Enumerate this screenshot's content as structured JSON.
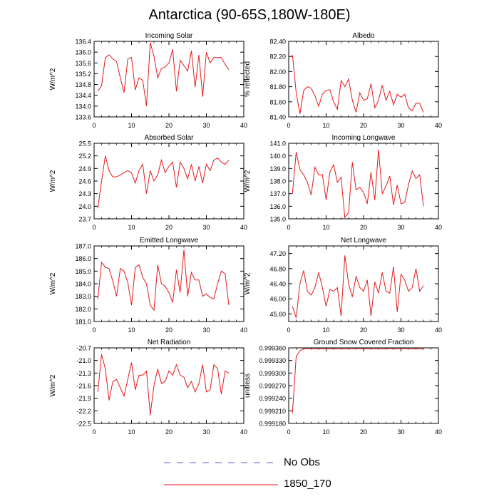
{
  "title": "Antarctica (90-65S,180W-180E)",
  "legend": {
    "items": [
      {
        "label": "No Obs",
        "color": "#5b5bd6",
        "dashed": true
      },
      {
        "label": "1850_170",
        "color": "#e41a1c",
        "dashed": false
      }
    ]
  },
  "chart_data": [
    {
      "type": "line",
      "title": "Incoming Solar",
      "ylabel": "W/m^2",
      "xlim": [
        0,
        40
      ],
      "xticks": [
        0,
        10,
        20,
        30,
        40
      ],
      "ylim": [
        133.6,
        136.4
      ],
      "yticks": [
        "133.6",
        "134.0",
        "134.4",
        "134.8",
        "135.2",
        "135.6",
        "136.0",
        "136.4"
      ],
      "series": [
        {
          "name": "1850_170",
          "x": [
            1,
            2,
            3,
            4,
            5,
            6,
            7,
            8,
            9,
            10,
            11,
            12,
            13,
            14,
            15,
            16,
            17,
            18,
            19,
            20,
            21,
            22,
            23,
            24,
            25,
            26,
            27,
            28,
            29,
            30,
            31,
            32,
            33,
            34,
            35,
            36
          ],
          "values": [
            134.55,
            134.75,
            135.8,
            135.9,
            135.75,
            135.65,
            135.05,
            134.5,
            135.75,
            135.8,
            134.6,
            135.05,
            134.95,
            134.0,
            136.35,
            135.85,
            135.05,
            135.4,
            135.45,
            135.6,
            136.1,
            134.55,
            135.7,
            135.5,
            135.3,
            136.05,
            134.7,
            135.9,
            134.35,
            136.0,
            135.6,
            135.8,
            135.8,
            135.8,
            135.55,
            135.35
          ]
        }
      ]
    },
    {
      "type": "line",
      "title": "Albedo",
      "ylabel": "% reflected",
      "xlim": [
        0,
        40
      ],
      "xticks": [
        0,
        10,
        20,
        30,
        40
      ],
      "ylim": [
        81.4,
        82.4
      ],
      "yticks": [
        "81.40",
        "81.60",
        "81.80",
        "82.00",
        "82.20",
        "82.40"
      ],
      "series": [
        {
          "name": "1850_170",
          "x": [
            1,
            2,
            3,
            4,
            5,
            6,
            7,
            8,
            9,
            10,
            11,
            12,
            13,
            14,
            15,
            16,
            17,
            18,
            19,
            20,
            21,
            22,
            23,
            24,
            25,
            26,
            27,
            28,
            29,
            30,
            31,
            32,
            33,
            34,
            35,
            36
          ],
          "values": [
            82.22,
            81.72,
            81.44,
            81.75,
            81.8,
            81.78,
            81.68,
            81.54,
            81.7,
            81.75,
            81.76,
            81.6,
            81.5,
            81.88,
            81.8,
            81.9,
            81.62,
            81.46,
            81.72,
            81.62,
            81.64,
            81.84,
            81.52,
            81.62,
            81.82,
            81.62,
            81.74,
            81.56,
            81.7,
            81.66,
            81.7,
            81.52,
            81.48,
            81.58,
            81.58,
            81.46
          ]
        }
      ]
    },
    {
      "type": "line",
      "title": "Absorbed Solar",
      "ylabel": "W/m^2",
      "xlim": [
        0,
        40
      ],
      "xticks": [
        0,
        10,
        20,
        30,
        40
      ],
      "ylim": [
        23.7,
        25.5
      ],
      "yticks": [
        "23.7",
        "24.0",
        "24.3",
        "24.6",
        "24.9",
        "25.2",
        "25.5"
      ],
      "series": [
        {
          "name": "1850_170",
          "x": [
            1,
            2,
            3,
            4,
            5,
            6,
            7,
            8,
            9,
            10,
            11,
            12,
            13,
            14,
            15,
            16,
            17,
            18,
            19,
            20,
            21,
            22,
            23,
            24,
            25,
            26,
            27,
            28,
            29,
            30,
            31,
            32,
            33,
            34,
            35,
            36
          ],
          "values": [
            23.95,
            24.6,
            25.2,
            24.85,
            24.7,
            24.7,
            24.75,
            24.8,
            24.85,
            24.8,
            24.55,
            24.85,
            25.0,
            24.3,
            24.85,
            24.6,
            24.75,
            25.1,
            24.8,
            24.95,
            25.05,
            24.45,
            25.05,
            24.9,
            24.65,
            25.0,
            24.6,
            24.95,
            24.55,
            25.0,
            24.85,
            25.1,
            25.15,
            25.05,
            25.0,
            25.1
          ]
        }
      ]
    },
    {
      "type": "line",
      "title": "Incoming Longwave",
      "ylabel": "W/m^2",
      "xlim": [
        0,
        40
      ],
      "xticks": [
        0,
        10,
        20,
        30,
        40
      ],
      "ylim": [
        135.0,
        141.0
      ],
      "yticks": [
        "135.0",
        "136.0",
        "137.0",
        "138.0",
        "139.0",
        "140.0",
        "141.0"
      ],
      "series": [
        {
          "name": "1850_170",
          "x": [
            1,
            2,
            3,
            4,
            5,
            6,
            7,
            8,
            9,
            10,
            11,
            12,
            13,
            14,
            15,
            16,
            17,
            18,
            19,
            20,
            21,
            22,
            23,
            24,
            25,
            26,
            27,
            28,
            29,
            30,
            31,
            32,
            33,
            34,
            35,
            36
          ],
          "values": [
            137.0,
            140.3,
            138.9,
            138.5,
            137.9,
            136.9,
            139.1,
            138.5,
            138.5,
            136.5,
            138.7,
            139.3,
            137.9,
            138.3,
            135.1,
            135.5,
            139.5,
            137.3,
            137.5,
            137.1,
            136.2,
            138.7,
            136.5,
            140.5,
            137.0,
            137.6,
            138.4,
            136.1,
            137.7,
            136.2,
            136.3,
            137.7,
            138.8,
            138.2,
            138.5,
            136.0
          ]
        }
      ]
    },
    {
      "type": "line",
      "title": "Emitted Longwave",
      "ylabel": "W/m^2",
      "xlim": [
        0,
        40
      ],
      "xticks": [
        0,
        10,
        20,
        30,
        40
      ],
      "ylim": [
        181.0,
        187.0
      ],
      "yticks": [
        "181.0",
        "182.0",
        "183.0",
        "184.0",
        "185.0",
        "186.0",
        "187.0"
      ],
      "series": [
        {
          "name": "1850_170",
          "x": [
            1,
            2,
            3,
            4,
            5,
            6,
            7,
            8,
            9,
            10,
            11,
            12,
            13,
            14,
            15,
            16,
            17,
            18,
            19,
            20,
            21,
            22,
            23,
            24,
            25,
            26,
            27,
            28,
            29,
            30,
            31,
            32,
            33,
            34,
            35,
            36
          ],
          "values": [
            182.8,
            185.7,
            185.3,
            185.2,
            184.2,
            183.0,
            185.2,
            185.0,
            184.1,
            182.3,
            185.3,
            185.5,
            184.5,
            184.0,
            182.3,
            181.9,
            185.5,
            184.0,
            183.8,
            183.3,
            182.5,
            185.1,
            183.3,
            186.7,
            183.0,
            184.9,
            184.3,
            184.3,
            183.0,
            183.2,
            182.9,
            182.8,
            184.0,
            185.0,
            184.8,
            182.3
          ]
        }
      ]
    },
    {
      "type": "line",
      "title": "Net Longwave",
      "ylabel": "W/m^2",
      "xlim": [
        0,
        40
      ],
      "xticks": [
        0,
        10,
        20,
        30,
        40
      ],
      "ylim": [
        45.4,
        47.4
      ],
      "yticks": [
        "45.60",
        "46.00",
        "46.40",
        "46.80",
        "47.20"
      ],
      "series": [
        {
          "name": "1850_170",
          "x": [
            1,
            2,
            3,
            4,
            5,
            6,
            7,
            8,
            9,
            10,
            11,
            12,
            13,
            14,
            15,
            16,
            17,
            18,
            19,
            20,
            21,
            22,
            23,
            24,
            25,
            26,
            27,
            28,
            29,
            30,
            31,
            32,
            33,
            34,
            35,
            36
          ],
          "values": [
            45.8,
            45.5,
            46.4,
            46.75,
            46.2,
            46.1,
            46.3,
            46.7,
            46.3,
            45.8,
            46.25,
            46.2,
            46.3,
            45.55,
            47.15,
            46.4,
            46.05,
            46.6,
            46.3,
            46.2,
            46.5,
            45.55,
            46.45,
            46.15,
            46.7,
            46.2,
            46.15,
            46.85,
            45.65,
            46.65,
            46.5,
            46.2,
            46.3,
            46.8,
            46.2,
            46.35
          ]
        }
      ]
    },
    {
      "type": "line",
      "title": "Net Radiation",
      "ylabel": "W/m^2",
      "xlim": [
        0,
        40
      ],
      "xticks": [
        0,
        10,
        20,
        30,
        40
      ],
      "ylim": [
        -22.5,
        -20.7
      ],
      "yticks": [
        "-22.5",
        "-22.2",
        "-21.9",
        "-21.6",
        "-21.3",
        "-21.0",
        "-20.7"
      ],
      "series": [
        {
          "name": "1850_170",
          "x": [
            1,
            2,
            3,
            4,
            5,
            6,
            7,
            8,
            9,
            10,
            11,
            12,
            13,
            14,
            15,
            16,
            17,
            18,
            19,
            20,
            21,
            22,
            23,
            24,
            25,
            26,
            27,
            28,
            29,
            30,
            31,
            32,
            33,
            34,
            35,
            36
          ],
          "values": [
            -21.75,
            -20.85,
            -21.2,
            -21.95,
            -21.5,
            -21.45,
            -21.65,
            -21.85,
            -21.45,
            -21.05,
            -21.7,
            -21.35,
            -21.35,
            -21.25,
            -22.3,
            -21.6,
            -21.2,
            -21.55,
            -21.5,
            -21.25,
            -21.35,
            -21.1,
            -21.35,
            -21.4,
            -21.65,
            -21.5,
            -21.75,
            -21.55,
            -21.1,
            -21.75,
            -21.7,
            -21.1,
            -21.2,
            -21.8,
            -21.25,
            -21.3
          ]
        }
      ]
    },
    {
      "type": "line",
      "title": "Ground Snow Covered Fraction",
      "ylabel": "unitless",
      "xlim": [
        0,
        40
      ],
      "xticks": [
        0,
        10,
        20,
        30,
        40
      ],
      "ylim": [
        0.99918,
        0.99936
      ],
      "yticks": [
        "0.999180",
        "0.999210",
        "0.999240",
        "0.999270",
        "0.999300",
        "0.999330",
        "0.999360"
      ],
      "series": [
        {
          "name": "1850_170",
          "x": [
            1,
            2,
            3,
            4,
            5,
            6,
            7,
            8,
            9,
            10,
            11,
            12,
            13,
            14,
            15,
            16,
            17,
            18,
            19,
            20,
            21,
            22,
            23,
            24,
            25,
            26,
            27,
            28,
            29,
            30,
            31,
            32,
            33,
            34,
            35,
            36
          ],
          "values": [
            0.999205,
            0.99934,
            0.999353,
            0.999358,
            0.999358,
            0.999358,
            0.999358,
            0.999358,
            0.999358,
            0.999358,
            0.999358,
            0.999358,
            0.999358,
            0.999358,
            0.999358,
            0.999358,
            0.999358,
            0.999358,
            0.999358,
            0.999358,
            0.999358,
            0.999358,
            0.999358,
            0.999358,
            0.999358,
            0.999358,
            0.999358,
            0.999358,
            0.999358,
            0.999358,
            0.999358,
            0.999358,
            0.999358,
            0.999358,
            0.999358,
            0.999357
          ]
        }
      ]
    }
  ]
}
